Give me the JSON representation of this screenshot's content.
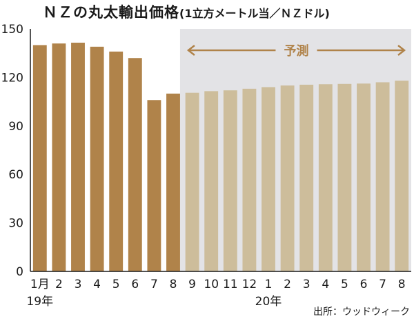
{
  "title": "ＮＺの丸太輸出価格",
  "subtitle": "(1立方メートル当／ＮＺドル)",
  "source": "出所：ウッドウィーク",
  "colors": {
    "actual": "#b0834a",
    "forecast": "#cdbd9b",
    "forecast_bg": "#e3e3e6",
    "annotation": "#b0834a",
    "axis": "#1a1a1a"
  },
  "chart_data": {
    "type": "bar",
    "categories": [
      "1月",
      "2",
      "3",
      "4",
      "5",
      "6",
      "7",
      "8",
      "9",
      "10",
      "11",
      "12",
      "1",
      "2",
      "3",
      "4",
      "5",
      "6",
      "7",
      "8"
    ],
    "year_labels": [
      {
        "index": 0,
        "label": "19年"
      },
      {
        "index": 12,
        "label": "20年"
      }
    ],
    "series": [
      {
        "values": [
          140,
          141,
          141.5,
          139,
          136,
          132,
          106,
          110,
          110.5,
          111.5,
          112,
          113,
          114,
          115,
          115.5,
          115.8,
          116,
          116.2,
          117,
          118
        ]
      }
    ],
    "forecast_start_index": 8,
    "forecast_label": "予測",
    "yticks": [
      0,
      30,
      60,
      90,
      120,
      150
    ],
    "ylim": [
      0,
      150
    ],
    "grid": false
  }
}
